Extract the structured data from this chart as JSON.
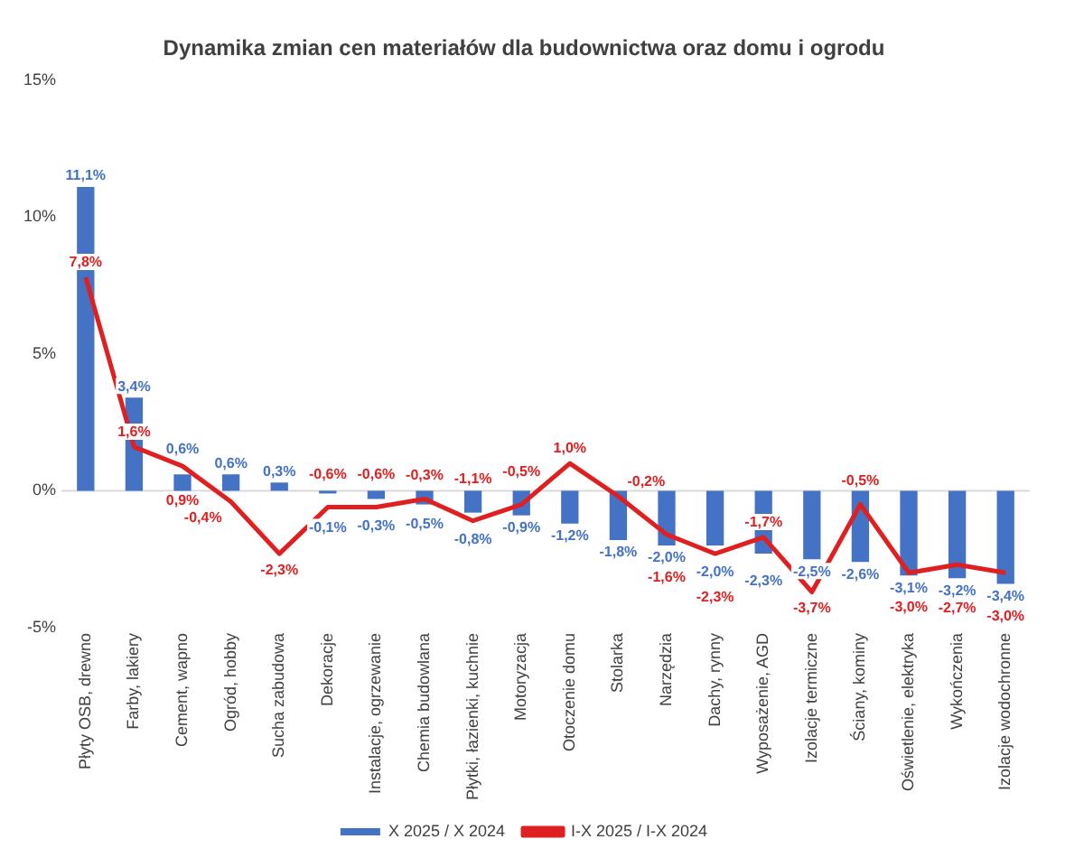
{
  "chart_data": {
    "type": "bar",
    "title": "Dynamika zmian cen materiałów dla budownictwa oraz domu i ogrodu",
    "categories": [
      "Płyty OSB, drewno",
      "Farby, lakiery",
      "Cement, wapno",
      "Ogród, hobby",
      "Sucha zabudowa",
      "Dekoracje",
      "Instalacje, ogrzewanie",
      "Chemia budowlana",
      "Płytki, łazienki, kuchnie",
      "Motoryzacja",
      "Otoczenie domu",
      "Stolarka",
      "Narzędzia",
      "Dachy, rynny",
      "Wyposażenie, AGD",
      "Izolacje termiczne",
      "Ściany, kominy",
      "Oświetlenie, elektryka",
      "Wykończenia",
      "Izolacje wodochronne"
    ],
    "series": [
      {
        "name": "X 2025 / X 2024",
        "color": "#4472c4",
        "values": [
          11.1,
          3.4,
          0.6,
          0.6,
          0.3,
          -0.1,
          -0.3,
          -0.5,
          -0.8,
          -0.9,
          -1.2,
          -1.8,
          -2.0,
          -2.0,
          -2.3,
          -2.5,
          -2.6,
          -3.1,
          -3.2,
          -3.4
        ],
        "value_labels": [
          "11,1%",
          "3,4%",
          "0,6%",
          "0,6%",
          "0,3%",
          "-0,1%",
          "-0,3%",
          "-0,5%",
          "-0,8%",
          "-0,9%",
          "-1,2%",
          "-1,8%",
          "-2,0%",
          "-2,0%",
          "-2,3%",
          "-2,5%",
          "-2,6%",
          "-3,1%",
          "-3,2%",
          "-3,4%"
        ]
      },
      {
        "name": "I-X 2025 / I-X 2024",
        "type": "line",
        "color": "#e02020",
        "values": [
          7.8,
          1.6,
          0.9,
          -0.4,
          -2.3,
          -0.6,
          -0.6,
          -0.3,
          -1.1,
          -0.5,
          1.0,
          -0.2,
          -1.6,
          -2.3,
          -1.7,
          -3.7,
          -0.5,
          -3.0,
          -2.7,
          -3.0
        ],
        "value_labels": [
          "7,8%",
          "1,6%",
          "0,9%",
          "-0,4%",
          "-2,3%",
          "-0,6%",
          "-0,6%",
          "-0,3%",
          "-1,1%",
          "-0,5%",
          "1,0%",
          "-0,2%",
          "-1,6%",
          "-2,3%",
          "-1,7%",
          "-3,7%",
          "-0,5%",
          "-3,0%",
          "-2,7%",
          "-3,0%"
        ]
      }
    ],
    "ylim": [
      -5,
      15
    ],
    "yticks": [
      {
        "value": -5,
        "label": "-5%"
      },
      {
        "value": 0,
        "label": "0%"
      },
      {
        "value": 5,
        "label": "5%"
      },
      {
        "value": 10,
        "label": "10%"
      },
      {
        "value": 15,
        "label": "15%"
      }
    ],
    "ref_lines": [
      {
        "axis": "y",
        "value": 0,
        "color": "#d9d9d9"
      }
    ],
    "grid": false,
    "legend": "bottom",
    "marker": "none",
    "line_style": "solid"
  }
}
